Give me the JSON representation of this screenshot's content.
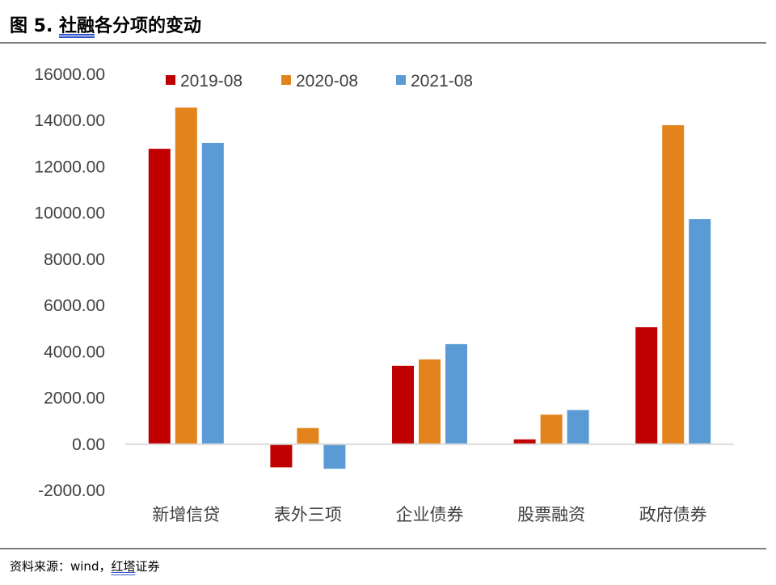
{
  "title": {
    "prefix": "图 5. ",
    "underlined": "社融",
    "rest": "各分项的变动"
  },
  "source": {
    "prefix": "资料来源：wind，",
    "underlined": "红塔",
    "rest": "证券"
  },
  "chart_data": {
    "type": "bar",
    "categories": [
      "新增信贷",
      "表外三项",
      "企业债券",
      "股票融资",
      "政府债券"
    ],
    "series": [
      {
        "name": "2019-08",
        "color": "#c00000",
        "values": [
          12780,
          -1000,
          3390,
          210,
          5060
        ]
      },
      {
        "name": "2020-08",
        "color": "#e3831b",
        "values": [
          14560,
          700,
          3670,
          1280,
          13800
        ]
      },
      {
        "name": "2021-08",
        "color": "#5b9bd5",
        "values": [
          13030,
          -1060,
          4330,
          1480,
          9740
        ]
      }
    ],
    "ylim": [
      -2000,
      16000
    ],
    "yticks": [
      "16000.00",
      "14000.00",
      "12000.00",
      "10000.00",
      "8000.00",
      "6000.00",
      "4000.00",
      "2000.00",
      "0.00",
      "-2000.00"
    ],
    "legend_position": "top",
    "grid": false
  }
}
